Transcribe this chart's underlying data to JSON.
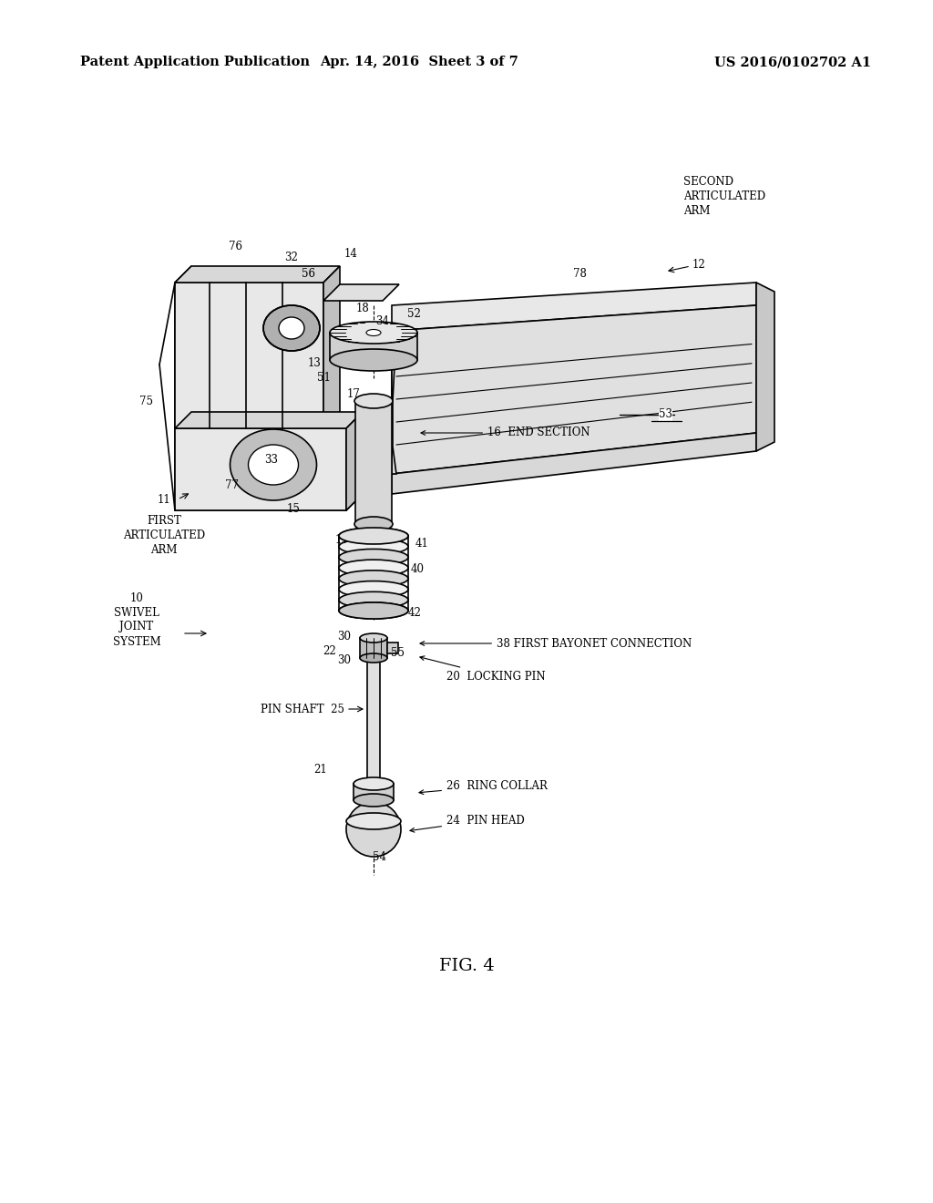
{
  "background_color": "#ffffff",
  "header_left": "Patent Application Publication",
  "header_center": "Apr. 14, 2016  Sheet 3 of 7",
  "header_right": "US 2016/0102702 A1",
  "figure_label": "FIG. 4",
  "header_fontsize": 10.5,
  "fig_label_fontsize": 14,
  "label_fontsize": 8.5
}
